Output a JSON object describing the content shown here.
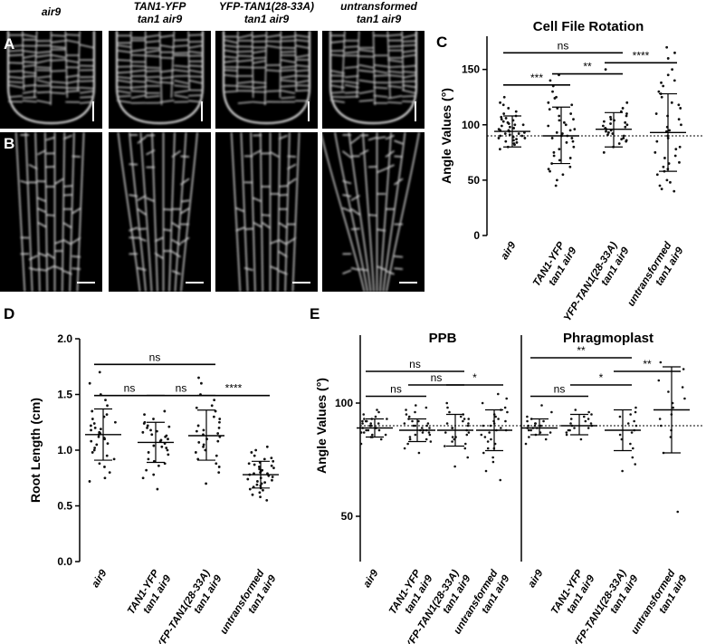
{
  "micrograph_columns": [
    "air9",
    "TAN1-YFP\ntan1 air9",
    "YFP-TAN1(28-33A)\ntan1 air9",
    "untransformed\ntan1 air9"
  ],
  "panel_letters": {
    "a": "A",
    "b": "B",
    "c": "C",
    "d": "D",
    "e": "E"
  },
  "chart_data": [
    {
      "id": "C",
      "type": "scatter",
      "title": "Cell File Rotation",
      "ylabel": "Angle Values (°)",
      "xlabel": "",
      "ylim": [
        0,
        180
      ],
      "yticks": [
        0,
        50,
        100,
        150
      ],
      "reference_line": 90,
      "categories": [
        "air9",
        "TAN1-YFP\ntan1 air9",
        "YFP-TAN1(28-33A)\ntan1 air9",
        "untransformed\ntan1 air9"
      ],
      "summary": [
        {
          "mean": 94,
          "sd_low": 80,
          "sd_high": 108
        },
        {
          "mean": 90,
          "sd_low": 65,
          "sd_high": 116
        },
        {
          "mean": 96,
          "sd_low": 80,
          "sd_high": 111
        },
        {
          "mean": 93,
          "sd_low": 58,
          "sd_high": 128
        }
      ],
      "points": [
        [
          88,
          92,
          95,
          100,
          105,
          110,
          85,
          90,
          97,
          102,
          80,
          115,
          120,
          125,
          78,
          93,
          99,
          104,
          107,
          87,
          82,
          91,
          96,
          101,
          112,
          118,
          84,
          89,
          94,
          98,
          103,
          108,
          86,
          83,
          92,
          95,
          100,
          106,
          90,
          88
        ],
        [
          55,
          60,
          65,
          70,
          75,
          80,
          85,
          90,
          95,
          100,
          105,
          110,
          115,
          120,
          125,
          130,
          135,
          140,
          145,
          58,
          62,
          68,
          72,
          78,
          84,
          88,
          92,
          96,
          102,
          108,
          114,
          118,
          45,
          50,
          88,
          90,
          93,
          99,
          104,
          124
        ],
        [
          80,
          85,
          88,
          90,
          92,
          95,
          98,
          100,
          102,
          105,
          108,
          110,
          112,
          115,
          83,
          87,
          91,
          94,
          97,
          99,
          101,
          104,
          107,
          150,
          120,
          75,
          86,
          93,
          96,
          103
        ],
        [
          40,
          45,
          50,
          55,
          60,
          65,
          70,
          75,
          80,
          85,
          90,
          95,
          100,
          105,
          110,
          115,
          120,
          125,
          130,
          135,
          140,
          145,
          150,
          160,
          165,
          170,
          42,
          48,
          58,
          66,
          78,
          88,
          94,
          98,
          108,
          118,
          128,
          138,
          62,
          72
        ]
      ],
      "significance": [
        {
          "from": 0,
          "to": 2,
          "label": "ns",
          "y": 165
        },
        {
          "from": 0,
          "to": 1,
          "label": "***",
          "y": 136
        },
        {
          "from": 1,
          "to": 2,
          "label": "**",
          "y": 146
        },
        {
          "from": 2,
          "to": 3,
          "label": "****",
          "y": 156
        }
      ]
    },
    {
      "id": "D",
      "type": "scatter",
      "title": "",
      "ylabel": "Root Length (cm)",
      "xlabel": "",
      "ylim": [
        0,
        2.0
      ],
      "yticks": [
        0.0,
        0.5,
        1.0,
        1.5,
        2.0
      ],
      "categories": [
        "air9",
        "TAN1-YFP\ntan1 air9",
        "YFP-TAN1(28-33A)\ntan1 air9",
        "untransformed\ntan1 air9"
      ],
      "summary": [
        {
          "mean": 1.14,
          "sd_low": 0.91,
          "sd_high": 1.37
        },
        {
          "mean": 1.07,
          "sd_low": 0.89,
          "sd_high": 1.25
        },
        {
          "mean": 1.13,
          "sd_low": 0.91,
          "sd_high": 1.36
        },
        {
          "mean": 0.78,
          "sd_low": 0.66,
          "sd_high": 0.9
        }
      ],
      "points": [
        [
          0.72,
          0.8,
          0.88,
          0.92,
          0.98,
          1.02,
          1.05,
          1.08,
          1.1,
          1.12,
          1.14,
          1.16,
          1.18,
          1.2,
          1.22,
          1.25,
          1.28,
          1.3,
          1.35,
          1.4,
          1.45,
          1.5,
          1.6,
          1.7,
          0.95,
          1.0,
          1.06,
          1.11,
          1.15,
          1.19,
          1.24,
          1.32,
          0.85,
          0.75
        ],
        [
          0.65,
          0.75,
          0.82,
          0.88,
          0.92,
          0.96,
          1.0,
          1.03,
          1.06,
          1.08,
          1.1,
          1.12,
          1.14,
          1.16,
          1.18,
          1.2,
          1.22,
          1.25,
          1.28,
          1.32,
          1.35,
          0.9,
          0.98,
          1.04,
          1.09,
          1.13,
          1.17,
          1.21,
          0.86,
          0.78,
          1.24,
          1.02
        ],
        [
          0.7,
          0.8,
          0.88,
          0.95,
          1.0,
          1.05,
          1.08,
          1.12,
          1.15,
          1.18,
          1.2,
          1.25,
          1.3,
          1.35,
          1.4,
          1.45,
          1.5,
          1.65,
          0.92,
          0.98,
          1.03,
          1.1,
          1.14,
          1.22,
          1.28,
          1.38,
          0.85,
          1.6,
          1.07,
          1.17
        ],
        [
          0.55,
          0.6,
          0.62,
          0.65,
          0.68,
          0.7,
          0.72,
          0.74,
          0.76,
          0.78,
          0.8,
          0.82,
          0.84,
          0.86,
          0.88,
          0.9,
          0.92,
          0.95,
          0.98,
          1.0,
          1.03,
          0.66,
          0.71,
          0.75,
          0.79,
          0.83,
          0.87,
          0.64,
          0.69,
          0.73,
          0.77,
          0.81,
          0.85,
          0.89,
          0.58,
          0.93,
          0.67,
          0.79
        ]
      ],
      "significance": [
        {
          "from": 0,
          "to": 2,
          "label": "ns",
          "y": 1.77
        },
        {
          "from": 0,
          "to": 1,
          "label": "ns",
          "y": 1.49
        },
        {
          "from": 1,
          "to": 2,
          "label": "ns",
          "y": 1.49
        },
        {
          "from": 2,
          "to": 3,
          "label": "****",
          "y": 1.49
        }
      ]
    },
    {
      "id": "E",
      "type": "scatter",
      "ylabel": "Angle Values (°)",
      "xlabel": "",
      "ylim": [
        30,
        130
      ],
      "yticks": [
        50,
        100
      ],
      "reference_line": 90,
      "groups": [
        {
          "title": "PPB",
          "categories": [
            "air9",
            "TAN1-YFP\ntan1 air9",
            "YFP-TAN1(28-33A)\ntan1 air9",
            "untransformed\ntan1 air9"
          ],
          "summary": [
            {
              "mean": 89,
              "sd_low": 85,
              "sd_high": 93
            },
            {
              "mean": 88,
              "sd_low": 83,
              "sd_high": 93
            },
            {
              "mean": 88,
              "sd_low": 81,
              "sd_high": 95
            },
            {
              "mean": 88,
              "sd_low": 79,
              "sd_high": 97
            }
          ],
          "points": [
            [
              82,
              84,
              85,
              86,
              87,
              88,
              88,
              89,
              89,
              90,
              90,
              91,
              91,
              92,
              92,
              93,
              93,
              94,
              95,
              96,
              97,
              86,
              87,
              90,
              91,
              92,
              88,
              89,
              93,
              85
            ],
            [
              78,
              80,
              82,
              84,
              85,
              86,
              87,
              88,
              88,
              89,
              89,
              90,
              90,
              91,
              92,
              93,
              94,
              95,
              96,
              97,
              98,
              99,
              84,
              86,
              87,
              91,
              92,
              83,
              88,
              90
            ],
            [
              72,
              76,
              80,
              82,
              84,
              85,
              86,
              87,
              88,
              89,
              90,
              91,
              92,
              93,
              94,
              95,
              96,
              98,
              100,
              81,
              83,
              85,
              89,
              91,
              93,
              87
            ],
            [
              66,
              70,
              74,
              78,
              80,
              82,
              84,
              86,
              88,
              90,
              92,
              94,
              96,
              98,
              100,
              102,
              104,
              80,
              85,
              87,
              89,
              91,
              93,
              95,
              97,
              76,
              83,
              88,
              90,
              92
            ]
          ],
          "significance": [
            {
              "from": 0,
              "to": 2,
              "label": "ns",
              "y": 114
            },
            {
              "from": 0,
              "to": 1,
              "label": "ns",
              "y": 103
            },
            {
              "from": 1,
              "to": 2,
              "label": "ns",
              "y": 108
            },
            {
              "from": 2,
              "to": 3,
              "label": "*",
              "y": 108
            }
          ]
        },
        {
          "title": "Phragmoplast",
          "categories": [
            "air9",
            "TAN1-YFP\ntan1 air9",
            "YFP-TAN1(28-33A)\ntan1 air9",
            "untransformed\ntan1 air9"
          ],
          "summary": [
            {
              "mean": 89,
              "sd_low": 86,
              "sd_high": 93
            },
            {
              "mean": 90,
              "sd_low": 86,
              "sd_high": 95
            },
            {
              "mean": 88,
              "sd_low": 79,
              "sd_high": 97
            },
            {
              "mean": 97,
              "sd_low": 78,
              "sd_high": 116
            }
          ],
          "points": [
            [
              82,
              84,
              86,
              87,
              88,
              88,
              89,
              89,
              90,
              90,
              91,
              91,
              92,
              93,
              94,
              96,
              85,
              87,
              90,
              92,
              99,
              89
            ],
            [
              84,
              86,
              88,
              89,
              90,
              90,
              91,
              92,
              93,
              94,
              95,
              96,
              97,
              87,
              89,
              91,
              93,
              88
            ],
            [
              70,
              73,
              76,
              80,
              84,
              86,
              88,
              90,
              92,
              94,
              96,
              98,
              82,
              87,
              91,
              95
            ],
            [
              52,
              78,
              85,
              90,
              95,
              100,
              105,
              110,
              115,
              118,
              88,
              98,
              102,
              107,
              93
            ]
          ],
          "significance": [
            {
              "from": 0,
              "to": 2,
              "label": "**",
              "y": 120
            },
            {
              "from": 0,
              "to": 1,
              "label": "ns",
              "y": 103
            },
            {
              "from": 1,
              "to": 2,
              "label": "*",
              "y": 108
            },
            {
              "from": 2,
              "to": 3,
              "label": "**",
              "y": 114
            }
          ]
        }
      ]
    }
  ]
}
